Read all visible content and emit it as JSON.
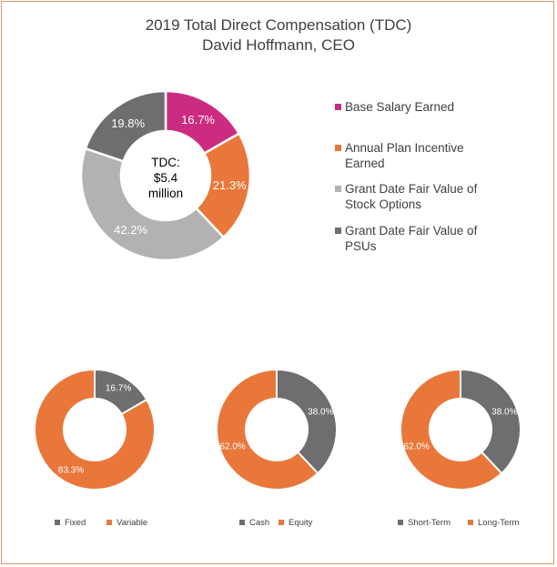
{
  "colors": {
    "magenta": "#cc2c7f",
    "orange": "#e9773a",
    "lightgray": "#b2b2b3",
    "darkgray": "#6e6e70",
    "border": "#e2956a",
    "text": "#404040"
  },
  "title_line1": "2019 Total Direct Compensation (TDC)",
  "title_line2": "David Hoffmann, CEO",
  "center": {
    "line1": "TDC:",
    "line2": "$5.4",
    "line3": "million"
  },
  "legend": [
    {
      "line1": "Base Salary Earned",
      "line2": "",
      "color": "#cc2c7f"
    },
    {
      "line1": "Annual Plan Incentive",
      "line2": "Earned",
      "color": "#e9773a"
    },
    {
      "line1": "Grant Date Fair Value of",
      "line2": "Stock Options",
      "color": "#b2b2b3"
    },
    {
      "line1": "Grant Date Fair Value of",
      "line2": "PSUs",
      "color": "#6e6e70"
    }
  ],
  "chart_data": [
    {
      "type": "pie",
      "title": "2019 Total Direct Compensation (TDC)",
      "categories": [
        "Base Salary Earned",
        "Annual Plan Incentive Earned",
        "Grant Date Fair Value of Stock Options",
        "Grant Date Fair Value of PSUs"
      ],
      "values": [
        16.7,
        21.3,
        42.2,
        19.8
      ],
      "labels": [
        "16.7%",
        "21.3%",
        "42.2%",
        "19.8%"
      ],
      "colors": [
        "#cc2c7f",
        "#e9773a",
        "#b2b2b3",
        "#6e6e70"
      ]
    },
    {
      "type": "pie",
      "categories": [
        "Fixed",
        "Variable"
      ],
      "values": [
        16.7,
        83.3
      ],
      "labels": [
        "16.7%",
        "83.3%"
      ],
      "colors": [
        "#6e6e70",
        "#e9773a"
      ]
    },
    {
      "type": "pie",
      "categories": [
        "Cash",
        "Equity"
      ],
      "values": [
        38.0,
        62.0
      ],
      "labels": [
        "38.0%",
        "62.0%"
      ],
      "colors": [
        "#6e6e70",
        "#e9773a"
      ]
    },
    {
      "type": "pie",
      "categories": [
        "Short-Term",
        "Long-Term"
      ],
      "values": [
        38.0,
        62.0
      ],
      "labels": [
        "38.0%",
        "62.0%"
      ],
      "colors": [
        "#6e6e70",
        "#e9773a"
      ]
    }
  ]
}
